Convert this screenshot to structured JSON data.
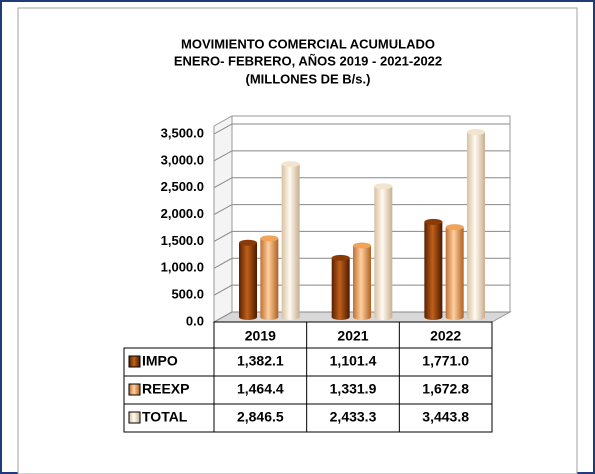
{
  "chart_data": {
    "type": "bar",
    "title": [
      "MOVIMIENTO COMERCIAL ACUMULADO",
      "ENERO-  FEBRERO,  AÑOS 2019 - 2021-2022",
      "(MILLONES DE B/s.)"
    ],
    "categories": [
      "2019",
      "2021",
      "2022"
    ],
    "series": [
      {
        "name": "IMPO",
        "color": "#8b3a05",
        "values": [
          1382.1,
          1101.4,
          1771.0
        ],
        "value_labels": [
          "1,382.1",
          "1,101.4",
          "1,771.0"
        ]
      },
      {
        "name": "REEXP",
        "color": "#f0a45a",
        "values": [
          1464.4,
          1331.9,
          1672.8
        ],
        "value_labels": [
          "1,464.4",
          "1,331.9",
          "1,672.8"
        ]
      },
      {
        "name": "TOTAL",
        "color": "#f3e4cf",
        "values": [
          2846.5,
          2433.3,
          3443.8
        ],
        "value_labels": [
          "2,846.5",
          "2,433.3",
          "3,443.8"
        ]
      }
    ],
    "ylim": [
      0,
      3500
    ],
    "yticks": [
      {
        "value": 0,
        "label": "0.0"
      },
      {
        "value": 500,
        "label": "500.0"
      },
      {
        "value": 1000,
        "label": "1,000.0"
      },
      {
        "value": 1500,
        "label": "1,500.0"
      },
      {
        "value": 2000,
        "label": "2,000.0"
      },
      {
        "value": 2500,
        "label": "2,500.0"
      },
      {
        "value": 3000,
        "label": "3,000.0"
      },
      {
        "value": 3500,
        "label": "3,500.0"
      }
    ],
    "grid": true
  }
}
